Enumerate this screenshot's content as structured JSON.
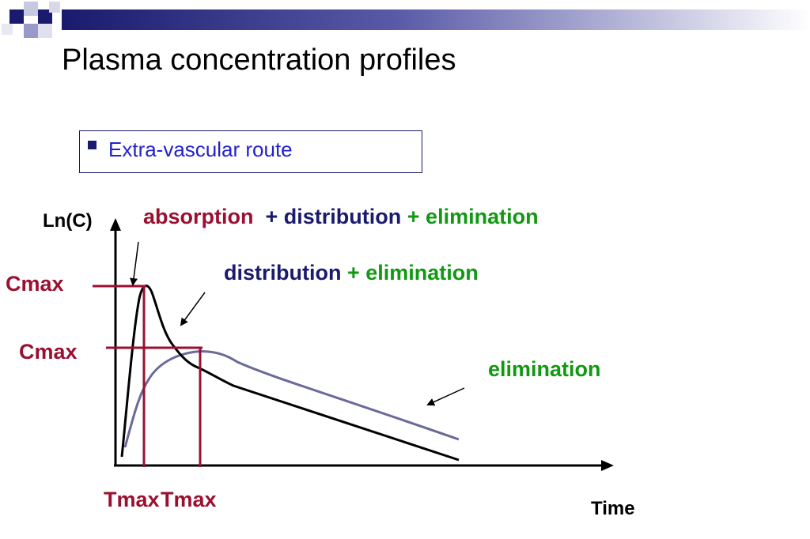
{
  "slide": {
    "title": "Plasma concentration profiles",
    "bullet": "Extra-vascular route"
  },
  "axes": {
    "y_label": "Ln(C)",
    "x_label": "Time"
  },
  "annotations": {
    "phase1": {
      "absorption": "absorption",
      "plus_distribution": "+ distribution",
      "plus_elimination": "+ elimination"
    },
    "phase2": {
      "distribution": "distribution",
      "plus_elimination": "+ elimination"
    },
    "phase3": {
      "elimination": "elimination"
    }
  },
  "markers": {
    "cmax_1": "Cmax",
    "cmax_2": "Cmax",
    "tmax_1": "Tmax",
    "tmax_2": "Tmax"
  },
  "colors": {
    "header_dark": "#1a1a6e",
    "header_light": "#8a8ac4",
    "bullet_blue": "#2222cc",
    "dark_red": "#9a1030",
    "navy": "#1a1a6e",
    "green": "#119911",
    "curve_black": "#000000",
    "curve_slate": "#6a6a9a"
  }
}
